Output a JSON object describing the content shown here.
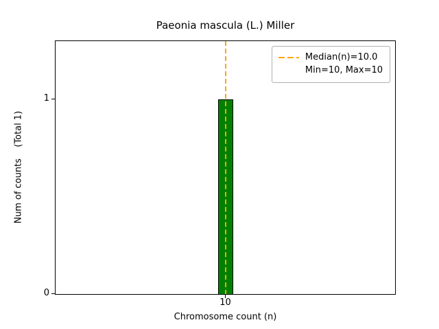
{
  "colors": {
    "bar_fill": "#008000",
    "bar_edge": "#000000",
    "median_line": "#ffa500",
    "legend_border": "#b0b0b0"
  },
  "chart_data": {
    "type": "bar",
    "title": "Paeonia mascula (L.) Miller",
    "xlabel": "Chromosome count (n)",
    "ylabel": "Num of counts    (Total 1)",
    "categories": [
      10
    ],
    "values": [
      1
    ],
    "xtick_labels": [
      "10"
    ],
    "ytick_labels": [
      "0",
      "1"
    ],
    "ylim": [
      0,
      1.3
    ],
    "median": 10,
    "min": 10,
    "max": 10,
    "grid": false,
    "legend": {
      "position": "upper right",
      "entries": [
        {
          "label": "Median(n)=10.0",
          "sample": "dashed-orange-line"
        },
        {
          "label": "Min=10, Max=10",
          "sample": "none"
        }
      ]
    }
  }
}
